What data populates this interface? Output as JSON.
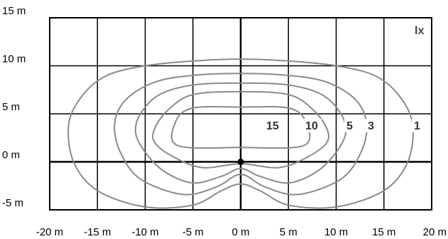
{
  "chart_data": {
    "type": "contour",
    "unit_label": "lx",
    "x_ticks": [
      "-20 m",
      "-15 m",
      "-10 m",
      "-5 m",
      "0 m",
      "5 m",
      "10 m",
      "15 m",
      "20 m"
    ],
    "y_ticks": [
      "15 m",
      "10 m",
      "5 m",
      "0 m",
      "-5 m"
    ],
    "xlim": [
      -20,
      20
    ],
    "ylim": [
      -5,
      15
    ],
    "grid": true,
    "source_point": {
      "x": 0,
      "y": 0
    },
    "levels": [
      {
        "label": "1",
        "points": [
          [
            0,
            10.7
          ],
          [
            5,
            10.5
          ],
          [
            10,
            10
          ],
          [
            14,
            9
          ],
          [
            16.5,
            7
          ],
          [
            18,
            4
          ],
          [
            17.5,
            0
          ],
          [
            15,
            -3
          ],
          [
            10,
            -4.7
          ],
          [
            5,
            -4.5
          ],
          [
            2,
            -3
          ],
          [
            0,
            -2.3
          ],
          [
            -2,
            -3
          ],
          [
            -5,
            -4.5
          ],
          [
            -10,
            -4.7
          ],
          [
            -15,
            -3
          ],
          [
            -17.5,
            0
          ],
          [
            -18,
            4
          ],
          [
            -16.5,
            7
          ],
          [
            -14,
            9
          ],
          [
            -10,
            10
          ],
          [
            -5,
            10.5
          ]
        ]
      },
      {
        "label": "3",
        "points": [
          [
            0,
            9.2
          ],
          [
            5,
            9
          ],
          [
            9,
            8.3
          ],
          [
            12,
            6.5
          ],
          [
            13.2,
            4
          ],
          [
            12.6,
            1
          ],
          [
            10.5,
            -1.8
          ],
          [
            6,
            -3.4
          ],
          [
            2.5,
            -2.6
          ],
          [
            0,
            -1.3
          ],
          [
            -2.5,
            -2.6
          ],
          [
            -6,
            -3.4
          ],
          [
            -10.5,
            -1.8
          ],
          [
            -12.6,
            1
          ],
          [
            -13.2,
            4
          ],
          [
            -12,
            6.5
          ],
          [
            -9,
            8.3
          ],
          [
            -5,
            9
          ]
        ]
      },
      {
        "label": "5",
        "points": [
          [
            0,
            8.2
          ],
          [
            5,
            8
          ],
          [
            8.5,
            7
          ],
          [
            10.5,
            5
          ],
          [
            11,
            3
          ],
          [
            10,
            1
          ],
          [
            8,
            -1
          ],
          [
            5,
            -2.2
          ],
          [
            2,
            -1.5
          ],
          [
            0,
            -0.7
          ],
          [
            -2,
            -1.5
          ],
          [
            -5,
            -2.2
          ],
          [
            -8,
            -1
          ],
          [
            -10,
            1
          ],
          [
            -11,
            3
          ],
          [
            -10.5,
            5
          ],
          [
            -8.5,
            7
          ],
          [
            -5,
            8
          ]
        ]
      },
      {
        "label": "10",
        "points": [
          [
            0,
            7.3
          ],
          [
            5,
            7
          ],
          [
            7.5,
            5.5
          ],
          [
            9,
            3.5
          ],
          [
            9,
            2
          ],
          [
            7,
            0.5
          ],
          [
            4,
            -0.6
          ],
          [
            0,
            -0.2
          ],
          [
            -4,
            -0.6
          ],
          [
            -7,
            0.5
          ],
          [
            -9,
            2
          ],
          [
            -9,
            3.5
          ],
          [
            -7.5,
            5.5
          ],
          [
            -5,
            7
          ]
        ]
      },
      {
        "label": "15",
        "points": [
          [
            0,
            5.7
          ],
          [
            5,
            5.6
          ],
          [
            6.8,
            4.2
          ],
          [
            6.6,
            1.7
          ],
          [
            0,
            1.5
          ],
          [
            -6.6,
            1.7
          ],
          [
            -6.8,
            4.2
          ],
          [
            -5,
            5.6
          ]
        ]
      }
    ]
  }
}
